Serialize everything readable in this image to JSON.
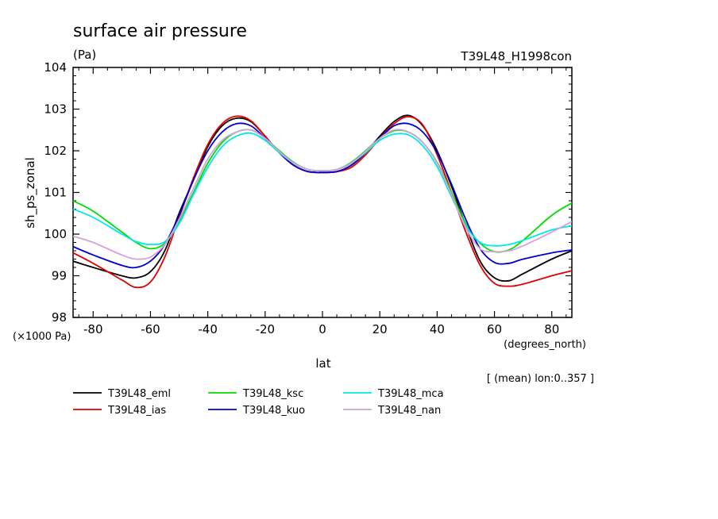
{
  "chart_data": {
    "type": "line",
    "title": "surface air pressure",
    "units": "(Pa)",
    "run_label": "T39L48_H1998con",
    "ylabel": "sh_ps_zonal",
    "y_scale_note": "(×1000 Pa)",
    "xlabel": "lat",
    "x_unit_label": "(degrees_north)",
    "mean_note": "[ (mean) lon:0..357 ]",
    "xlim": [
      -87,
      87
    ],
    "ylim": [
      98,
      104
    ],
    "x_ticks": [
      -80,
      -60,
      -40,
      -20,
      0,
      20,
      40,
      60,
      80
    ],
    "y_ticks": [
      98,
      99,
      100,
      101,
      102,
      103,
      104
    ],
    "x": [
      -87,
      -80,
      -70,
      -65,
      -60,
      -55,
      -50,
      -45,
      -40,
      -35,
      -30,
      -25,
      -20,
      -15,
      -10,
      -5,
      0,
      5,
      10,
      15,
      20,
      25,
      30,
      35,
      40,
      45,
      50,
      55,
      60,
      65,
      70,
      80,
      87
    ],
    "series": [
      {
        "name": "T39L48_eml",
        "color": "#000000",
        "values": [
          99.35,
          99.2,
          99.0,
          98.95,
          99.1,
          99.6,
          100.5,
          101.3,
          102.1,
          102.6,
          102.78,
          102.7,
          102.35,
          101.95,
          101.65,
          101.5,
          101.48,
          101.5,
          101.65,
          101.95,
          102.35,
          102.7,
          102.85,
          102.6,
          102.0,
          101.15,
          100.2,
          99.35,
          98.95,
          98.88,
          99.05,
          99.4,
          99.6
        ]
      },
      {
        "name": "T39L48_ias",
        "color": "#e00000",
        "values": [
          99.55,
          99.3,
          98.9,
          98.72,
          98.85,
          99.45,
          100.4,
          101.35,
          102.15,
          102.65,
          102.83,
          102.72,
          102.35,
          101.95,
          101.65,
          101.5,
          101.48,
          101.5,
          101.6,
          101.9,
          102.3,
          102.65,
          102.82,
          102.62,
          101.9,
          101.0,
          100.05,
          99.25,
          98.82,
          98.75,
          98.8,
          99.0,
          99.12
        ]
      },
      {
        "name": "T39L48_ksc",
        "color": "#00dd00",
        "values": [
          100.8,
          100.55,
          100.05,
          99.8,
          99.65,
          99.78,
          100.3,
          101.0,
          101.7,
          102.2,
          102.45,
          102.5,
          102.3,
          102.0,
          101.72,
          101.55,
          101.52,
          101.55,
          101.72,
          102.0,
          102.3,
          102.48,
          102.45,
          102.2,
          101.72,
          101.0,
          100.25,
          99.78,
          99.58,
          99.62,
          99.85,
          100.45,
          100.75
        ]
      },
      {
        "name": "T39L48_kuo",
        "color": "#0000cc",
        "values": [
          99.7,
          99.5,
          99.25,
          99.2,
          99.35,
          99.75,
          100.45,
          101.3,
          102.0,
          102.45,
          102.65,
          102.6,
          102.3,
          101.95,
          101.65,
          101.5,
          101.48,
          101.5,
          101.65,
          101.95,
          102.3,
          102.6,
          102.65,
          102.45,
          101.95,
          101.2,
          100.35,
          99.65,
          99.32,
          99.3,
          99.4,
          99.55,
          99.62
        ]
      },
      {
        "name": "T39L48_mca",
        "color": "#00e8e8",
        "values": [
          100.6,
          100.4,
          100.0,
          99.82,
          99.75,
          99.82,
          100.25,
          100.95,
          101.6,
          102.1,
          102.35,
          102.42,
          102.25,
          101.95,
          101.7,
          101.55,
          101.52,
          101.55,
          101.7,
          101.95,
          102.25,
          102.4,
          102.38,
          102.12,
          101.62,
          100.9,
          100.2,
          99.8,
          99.72,
          99.75,
          99.85,
          100.1,
          100.2
        ]
      },
      {
        "name": "T39L48_nan",
        "color": "#d8a0d8",
        "values": [
          99.95,
          99.8,
          99.5,
          99.4,
          99.45,
          99.75,
          100.35,
          101.1,
          101.8,
          102.25,
          102.45,
          102.5,
          102.3,
          101.98,
          101.7,
          101.55,
          101.52,
          101.55,
          101.7,
          101.98,
          102.3,
          102.5,
          102.45,
          102.2,
          101.7,
          100.95,
          100.15,
          99.65,
          99.58,
          99.6,
          99.72,
          100.05,
          100.3
        ]
      }
    ]
  }
}
